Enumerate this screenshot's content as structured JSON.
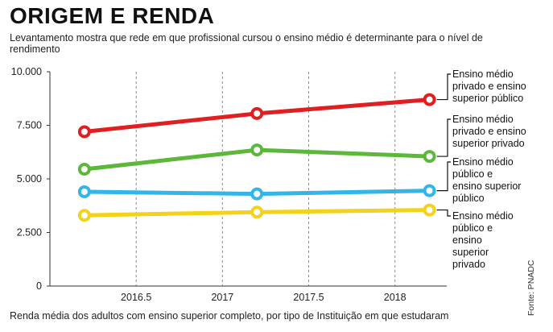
{
  "title": "ORIGEM E RENDA",
  "subtitle": "Levantamento mostra que rede em que profissional cursou o ensino médio é determinante para o nível de rendimento",
  "caption": "Renda média dos adultos com ensino superior completo, por tipo de Instituição em que estudaram",
  "source": "Fonte: PNADC",
  "chart_data": {
    "type": "line",
    "x": [
      2016.2,
      2017.2,
      2018.2
    ],
    "xticks": [
      "2016.5",
      "2017",
      "2017.5",
      "2018"
    ],
    "xtick_values": [
      2016.5,
      2017,
      2017.5,
      2018
    ],
    "xlim": [
      2016.0,
      2018.3
    ],
    "yticks": [
      "0",
      "2.500",
      "5.000",
      "7.500",
      "10.000"
    ],
    "ytick_values": [
      0,
      2500,
      5000,
      7500,
      10000
    ],
    "ylim": [
      0,
      10000
    ],
    "grid": "vertical dashed",
    "legend": "right, labels at line ends",
    "series": [
      {
        "name": "Ensino médio privado e ensino superior público",
        "lines": [
          "Ensino médio",
          "privado e ensino",
          "superior público"
        ],
        "color": "#e02020",
        "values": [
          7200,
          8050,
          8700
        ]
      },
      {
        "name": "Ensino médio privado e ensino superior privado",
        "lines": [
          "Ensino médio",
          "privado e ensino",
          "superior privado"
        ],
        "color": "#5cb83a",
        "values": [
          5450,
          6350,
          6050
        ]
      },
      {
        "name": "Ensino médio público e ensino superior público",
        "lines": [
          "Ensino médio",
          "público e",
          "ensino superior",
          "público"
        ],
        "color": "#33b5ea",
        "values": [
          4400,
          4300,
          4450
        ]
      },
      {
        "name": "Ensino médio público e ensino superior privado",
        "lines": [
          "Ensino médio",
          "público e",
          "ensino",
          "superior",
          "privado"
        ],
        "color": "#f2d21a",
        "values": [
          3300,
          3450,
          3550
        ]
      }
    ]
  }
}
